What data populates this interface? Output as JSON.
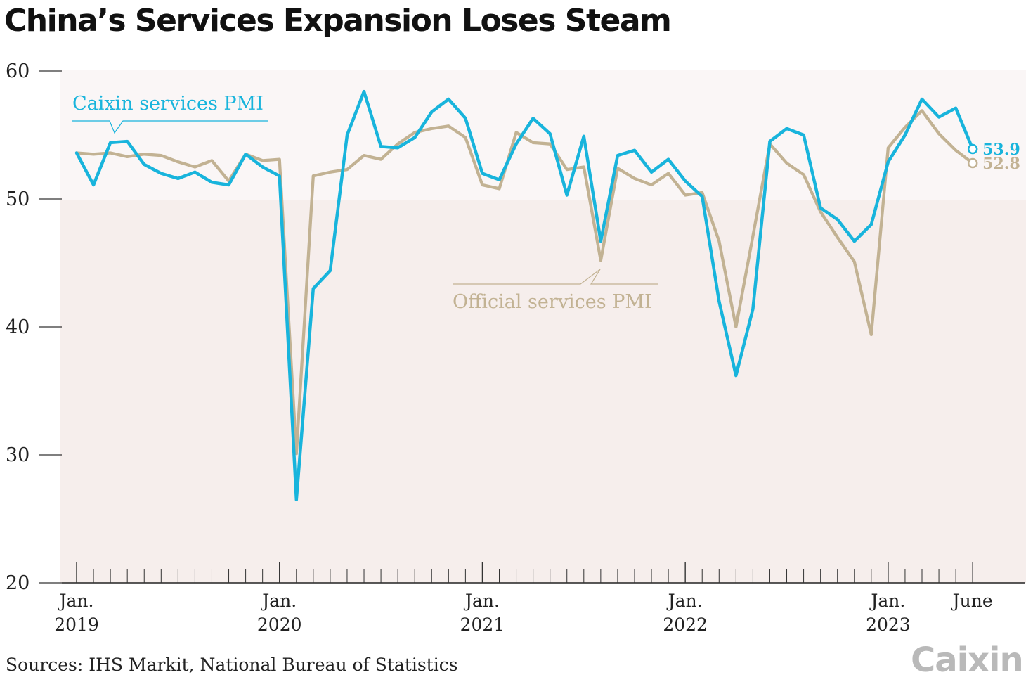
{
  "title": "China’s Services Expansion Loses Steam",
  "source": "Sources: IHS Markit, National Bureau of Statistics",
  "logo": "Caixin",
  "colors": {
    "caixin": "#18b4dc",
    "official": "#c2b293",
    "band_above": "#faf6f6",
    "band_below": "#f6eeec"
  },
  "chart_data": {
    "type": "line",
    "title": "China’s Services Expansion Loses Steam",
    "xlabel": "",
    "ylabel": "",
    "ylim": [
      20,
      60
    ],
    "yticks": [
      "60",
      "50",
      "40",
      "30",
      "20"
    ],
    "reference_line": 50,
    "grid": false,
    "x_range": [
      "2019-01",
      "2023-06"
    ],
    "xtick_labels": [
      {
        "month": "Jan.",
        "year": "2019"
      },
      {
        "month": "Jan.",
        "year": "2020"
      },
      {
        "month": "Jan.",
        "year": "2021"
      },
      {
        "month": "Jan.",
        "year": "2022"
      },
      {
        "month": "Jan.",
        "year": "2023"
      },
      {
        "month": "June",
        "year": ""
      }
    ],
    "x": [
      "2019-01",
      "2019-02",
      "2019-03",
      "2019-04",
      "2019-05",
      "2019-06",
      "2019-07",
      "2019-08",
      "2019-09",
      "2019-10",
      "2019-11",
      "2019-12",
      "2020-01",
      "2020-02",
      "2020-03",
      "2020-04",
      "2020-05",
      "2020-06",
      "2020-07",
      "2020-08",
      "2020-09",
      "2020-10",
      "2020-11",
      "2020-12",
      "2021-01",
      "2021-02",
      "2021-03",
      "2021-04",
      "2021-05",
      "2021-06",
      "2021-07",
      "2021-08",
      "2021-09",
      "2021-10",
      "2021-11",
      "2021-12",
      "2022-01",
      "2022-02",
      "2022-03",
      "2022-04",
      "2022-05",
      "2022-06",
      "2022-07",
      "2022-08",
      "2022-09",
      "2022-10",
      "2022-11",
      "2022-12",
      "2023-01",
      "2023-02",
      "2023-03",
      "2023-04",
      "2023-05",
      "2023-06"
    ],
    "series": [
      {
        "name": "Official services PMI",
        "color": "#c2b293",
        "label_position": "below-center",
        "end_label": "52.8",
        "values": [
          53.6,
          53.5,
          53.6,
          53.3,
          53.5,
          53.4,
          52.9,
          52.5,
          53.0,
          51.4,
          53.5,
          53.0,
          53.1,
          30.1,
          51.8,
          52.1,
          52.3,
          53.4,
          53.1,
          54.3,
          55.2,
          55.5,
          55.7,
          54.8,
          51.1,
          50.8,
          55.2,
          54.4,
          54.3,
          52.3,
          52.5,
          45.2,
          52.4,
          51.6,
          51.1,
          52.0,
          50.3,
          50.5,
          46.7,
          40.0,
          47.1,
          54.3,
          52.8,
          51.9,
          49.0,
          47.0,
          45.1,
          39.4,
          54.0,
          55.6,
          56.9,
          55.1,
          53.8,
          52.8
        ]
      },
      {
        "name": "Caixin services PMI",
        "color": "#18b4dc",
        "label_position": "top-left",
        "end_label": "53.9",
        "values": [
          53.6,
          51.1,
          54.4,
          54.5,
          52.7,
          52.0,
          51.6,
          52.1,
          51.3,
          51.1,
          53.5,
          52.5,
          51.8,
          26.5,
          43.0,
          44.4,
          55.0,
          58.4,
          54.1,
          54.0,
          54.8,
          56.8,
          57.8,
          56.3,
          52.0,
          51.5,
          54.3,
          56.3,
          55.1,
          50.3,
          54.9,
          46.7,
          53.4,
          53.8,
          52.1,
          53.1,
          51.4,
          50.2,
          42.0,
          36.2,
          41.4,
          54.5,
          55.5,
          55.0,
          49.3,
          48.4,
          46.7,
          48.0,
          52.9,
          55.0,
          57.8,
          56.4,
          57.1,
          53.9
        ]
      }
    ]
  }
}
